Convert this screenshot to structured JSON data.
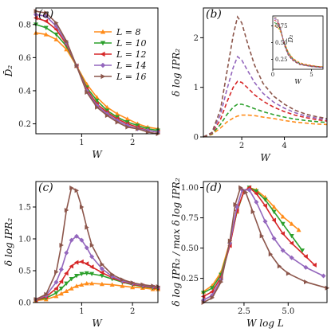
{
  "colors": {
    "L8": "#ff8c1a",
    "L10": "#2ca02c",
    "L12": "#d62728",
    "L14": "#9467bd",
    "L16": "#8c564b"
  },
  "legend": [
    {
      "label": "L = 8",
      "color": "#ff8c1a",
      "marker": "triangle-up"
    },
    {
      "label": "L = 10",
      "color": "#2ca02c",
      "marker": "triangle-down"
    },
    {
      "label": "L = 12",
      "color": "#d62728",
      "marker": "triangle-left"
    },
    {
      "label": "L = 14",
      "color": "#9467bd",
      "marker": "diamond"
    },
    {
      "label": "L = 16",
      "color": "#8c564b",
      "marker": "triangle-right"
    }
  ],
  "chart_data": [
    {
      "panel": "(a)",
      "type": "line",
      "xlabel": "W",
      "ylabel": "D̄₂",
      "xlim": [
        0.1,
        2.5
      ],
      "ylim": [
        0.14,
        0.9
      ],
      "xticks": [
        1,
        2
      ],
      "yticks": [
        0.2,
        0.4,
        0.6,
        0.8
      ],
      "x": [
        0.1,
        0.3,
        0.5,
        0.7,
        0.9,
        1.1,
        1.3,
        1.5,
        1.7,
        1.9,
        2.1,
        2.3,
        2.5
      ],
      "series": [
        {
          "name": "L = 8",
          "values": [
            0.75,
            0.74,
            0.71,
            0.65,
            0.55,
            0.44,
            0.36,
            0.3,
            0.26,
            0.23,
            0.2,
            0.18,
            0.17
          ]
        },
        {
          "name": "L = 10",
          "values": [
            0.8,
            0.78,
            0.74,
            0.67,
            0.55,
            0.42,
            0.34,
            0.28,
            0.24,
            0.21,
            0.19,
            0.17,
            0.16
          ]
        },
        {
          "name": "L = 12",
          "values": [
            0.84,
            0.82,
            0.77,
            0.68,
            0.55,
            0.41,
            0.32,
            0.27,
            0.23,
            0.2,
            0.18,
            0.16,
            0.15
          ]
        },
        {
          "name": "L = 14",
          "values": [
            0.86,
            0.85,
            0.79,
            0.69,
            0.55,
            0.4,
            0.31,
            0.26,
            0.22,
            0.19,
            0.17,
            0.16,
            0.15
          ]
        },
        {
          "name": "L = 16",
          "values": [
            0.88,
            0.87,
            0.81,
            0.7,
            0.55,
            0.39,
            0.3,
            0.25,
            0.21,
            0.18,
            0.17,
            0.15,
            0.14
          ]
        }
      ]
    },
    {
      "panel": "(b)",
      "type": "line",
      "xlabel": "W",
      "ylabel": "δ log IPR₂",
      "xlim": [
        0.2,
        6.0
      ],
      "ylim": [
        0,
        2.6
      ],
      "xticks": [
        2,
        4
      ],
      "yticks": [
        0,
        1,
        2
      ],
      "x": [
        0.2,
        0.6,
        1.0,
        1.3,
        1.6,
        1.8,
        2.0,
        2.3,
        2.6,
        3.0,
        3.5,
        4.0,
        4.5,
        5.0,
        5.5,
        6.0
      ],
      "series": [
        {
          "name": "L = 8",
          "values": [
            0.0,
            0.05,
            0.18,
            0.3,
            0.38,
            0.42,
            0.44,
            0.44,
            0.43,
            0.4,
            0.37,
            0.33,
            0.3,
            0.28,
            0.26,
            0.25
          ]
        },
        {
          "name": "L = 10",
          "values": [
            0.0,
            0.06,
            0.25,
            0.45,
            0.6,
            0.66,
            0.66,
            0.62,
            0.57,
            0.51,
            0.45,
            0.4,
            0.36,
            0.33,
            0.31,
            0.29
          ]
        },
        {
          "name": "L = 12",
          "values": [
            0.0,
            0.07,
            0.35,
            0.7,
            1.0,
            1.12,
            1.1,
            0.98,
            0.85,
            0.72,
            0.6,
            0.51,
            0.44,
            0.39,
            0.35,
            0.32
          ]
        },
        {
          "name": "L = 14",
          "values": [
            0.0,
            0.08,
            0.45,
            0.95,
            1.4,
            1.62,
            1.55,
            1.32,
            1.1,
            0.88,
            0.7,
            0.58,
            0.49,
            0.42,
            0.38,
            0.35
          ]
        },
        {
          "name": "L = 16",
          "values": [
            0.0,
            0.09,
            0.55,
            1.3,
            2.05,
            2.42,
            2.3,
            1.85,
            1.45,
            1.08,
            0.82,
            0.66,
            0.54,
            0.46,
            0.41,
            0.37
          ]
        }
      ],
      "inset": {
        "xlabel": "W",
        "ylabel": "D̄₂",
        "xlim": [
          0,
          6.5
        ],
        "ylim": [
          0.1,
          0.9
        ],
        "xticks": [
          0,
          5
        ],
        "yticks": [
          0.25,
          0.5,
          0.75
        ],
        "x": [
          0.2,
          0.6,
          1.0,
          1.5,
          2.0,
          2.5,
          3.0,
          3.5,
          4.0,
          5.0,
          6.0,
          6.5
        ],
        "series": [
          {
            "name": "L = 8",
            "values": [
              0.75,
              0.74,
              0.66,
              0.5,
              0.36,
              0.28,
              0.23,
              0.2,
              0.18,
              0.16,
              0.14,
              0.14
            ]
          },
          {
            "name": "L = 10",
            "values": [
              0.8,
              0.78,
              0.68,
              0.49,
              0.35,
              0.27,
              0.22,
              0.19,
              0.17,
              0.15,
              0.14,
              0.13
            ]
          },
          {
            "name": "L = 12",
            "values": [
              0.84,
              0.81,
              0.7,
              0.48,
              0.33,
              0.26,
              0.21,
              0.18,
              0.17,
              0.15,
              0.14,
              0.13
            ]
          },
          {
            "name": "L = 14",
            "values": [
              0.86,
              0.84,
              0.71,
              0.47,
              0.32,
              0.25,
              0.21,
              0.18,
              0.16,
              0.14,
              0.13,
              0.13
            ]
          },
          {
            "name": "L = 16",
            "values": [
              0.88,
              0.86,
              0.72,
              0.46,
              0.31,
              0.24,
              0.2,
              0.17,
              0.16,
              0.14,
              0.13,
              0.12
            ]
          }
        ]
      }
    },
    {
      "panel": "(c)",
      "type": "line",
      "xlabel": "W",
      "ylabel": "δ log IPR₂",
      "xlim": [
        0.1,
        2.5
      ],
      "ylim": [
        0,
        1.9
      ],
      "xticks": [
        1,
        2
      ],
      "yticks": [
        0.0,
        0.5,
        1.0,
        1.5
      ],
      "x": [
        0.1,
        0.3,
        0.5,
        0.6,
        0.7,
        0.8,
        0.9,
        1.0,
        1.1,
        1.2,
        1.4,
        1.6,
        1.8,
        2.0,
        2.2,
        2.4,
        2.5
      ],
      "series": [
        {
          "name": "L = 8",
          "values": [
            0.03,
            0.05,
            0.1,
            0.14,
            0.18,
            0.22,
            0.26,
            0.28,
            0.3,
            0.3,
            0.29,
            0.28,
            0.26,
            0.24,
            0.23,
            0.21,
            0.21
          ]
        },
        {
          "name": "L = 10",
          "values": [
            0.04,
            0.07,
            0.15,
            0.22,
            0.3,
            0.37,
            0.42,
            0.45,
            0.46,
            0.45,
            0.42,
            0.37,
            0.32,
            0.28,
            0.25,
            0.23,
            0.22
          ]
        },
        {
          "name": "L = 12",
          "values": [
            0.04,
            0.09,
            0.22,
            0.33,
            0.46,
            0.57,
            0.63,
            0.64,
            0.61,
            0.56,
            0.47,
            0.39,
            0.33,
            0.29,
            0.26,
            0.24,
            0.23
          ]
        },
        {
          "name": "L = 14",
          "values": [
            0.05,
            0.11,
            0.32,
            0.52,
            0.78,
            0.98,
            1.04,
            0.98,
            0.86,
            0.72,
            0.53,
            0.41,
            0.34,
            0.3,
            0.27,
            0.25,
            0.24
          ]
        },
        {
          "name": "L = 16",
          "values": [
            0.05,
            0.13,
            0.48,
            0.9,
            1.45,
            1.8,
            1.76,
            1.5,
            1.18,
            0.9,
            0.6,
            0.44,
            0.36,
            0.31,
            0.28,
            0.26,
            0.25
          ]
        }
      ]
    },
    {
      "panel": "(d)",
      "type": "line",
      "xlabel": "W log L",
      "ylabel": "δ log IPR₂ / max δ log IPR₂",
      "xlim": [
        0.2,
        7.2
      ],
      "ylim": [
        0.05,
        1.05
      ],
      "xticks": [
        2.5,
        5.0
      ],
      "yticks": [
        0.25,
        0.5,
        0.75,
        1.0
      ],
      "series": [
        {
          "name": "L = 8",
          "x": [
            0.2,
            0.7,
            1.2,
            1.7,
            2.1,
            2.5,
            2.8,
            3.2,
            3.7,
            4.2,
            4.7,
            5.2,
            5.6
          ],
          "values": [
            0.14,
            0.19,
            0.3,
            0.55,
            0.8,
            0.97,
            1.0,
            0.98,
            0.92,
            0.84,
            0.76,
            0.7,
            0.65
          ]
        },
        {
          "name": "L = 10",
          "x": [
            0.2,
            0.7,
            1.2,
            1.7,
            2.1,
            2.5,
            2.8,
            3.2,
            3.7,
            4.2,
            4.7,
            5.2,
            5.8
          ],
          "values": [
            0.13,
            0.17,
            0.28,
            0.53,
            0.8,
            0.97,
            1.0,
            0.97,
            0.9,
            0.8,
            0.7,
            0.6,
            0.48
          ]
        },
        {
          "name": "L = 12",
          "x": [
            0.2,
            0.7,
            1.2,
            1.7,
            2.1,
            2.5,
            2.8,
            3.2,
            3.7,
            4.2,
            4.7,
            5.2,
            6.0,
            6.5
          ],
          "values": [
            0.1,
            0.14,
            0.26,
            0.52,
            0.81,
            0.97,
            1.0,
            0.95,
            0.85,
            0.73,
            0.62,
            0.54,
            0.43,
            0.36
          ]
        },
        {
          "name": "L = 14",
          "x": [
            0.2,
            0.7,
            1.2,
            1.7,
            2.1,
            2.4,
            2.8,
            3.2,
            3.7,
            4.2,
            4.7,
            5.2,
            6.0,
            7.0
          ],
          "values": [
            0.07,
            0.11,
            0.24,
            0.54,
            0.84,
            0.98,
            0.98,
            0.88,
            0.72,
            0.58,
            0.48,
            0.42,
            0.34,
            0.27
          ]
        },
        {
          "name": "L = 16",
          "x": [
            0.2,
            0.7,
            1.2,
            1.7,
            2.0,
            2.3,
            2.6,
            3.0,
            3.5,
            4.0,
            4.5,
            5.0,
            6.0,
            7.2
          ],
          "values": [
            0.05,
            0.09,
            0.22,
            0.56,
            0.86,
            1.0,
            0.96,
            0.8,
            0.6,
            0.45,
            0.35,
            0.29,
            0.22,
            0.17
          ]
        }
      ]
    }
  ]
}
